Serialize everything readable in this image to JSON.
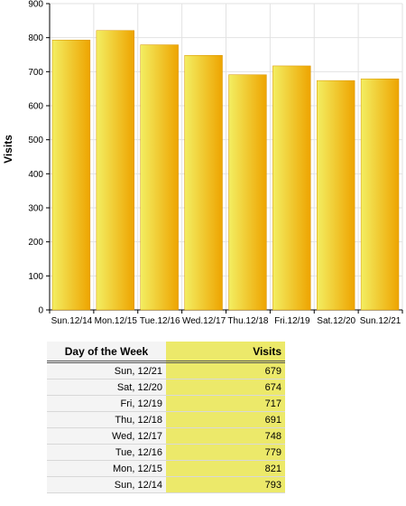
{
  "chart_data": {
    "type": "bar",
    "categories": [
      "Sun.12/14",
      "Mon.12/15",
      "Tue.12/16",
      "Wed.12/17",
      "Thu.12/18",
      "Fri.12/19",
      "Sat.12/20",
      "Sun.12/21"
    ],
    "series": [
      {
        "values": [
          793,
          821,
          779,
          748,
          691,
          717,
          674,
          679
        ]
      }
    ],
    "ylabel": "Visits",
    "ylim": [
      0,
      900
    ],
    "yticks": [
      0,
      100,
      200,
      300,
      400,
      500,
      600,
      700,
      800,
      900
    ],
    "grid": true,
    "colors": {
      "bar_light": "#f3ee62",
      "bar_dark": "#eea400"
    }
  },
  "table": {
    "headers": {
      "day": "Day of the Week",
      "value": "Visits"
    },
    "rows": [
      {
        "day": "Sun, 12/21",
        "value": "679"
      },
      {
        "day": "Sat, 12/20",
        "value": "674"
      },
      {
        "day": "Fri, 12/19",
        "value": "717"
      },
      {
        "day": "Thu, 12/18",
        "value": "691"
      },
      {
        "day": "Wed, 12/17",
        "value": "748"
      },
      {
        "day": "Tue, 12/16",
        "value": "779"
      },
      {
        "day": "Mon, 12/15",
        "value": "821"
      },
      {
        "day": "Sun, 12/14",
        "value": "793"
      }
    ],
    "colors": {
      "value_bg": "#ece96a",
      "day_bg": "#f4f4f4"
    }
  }
}
